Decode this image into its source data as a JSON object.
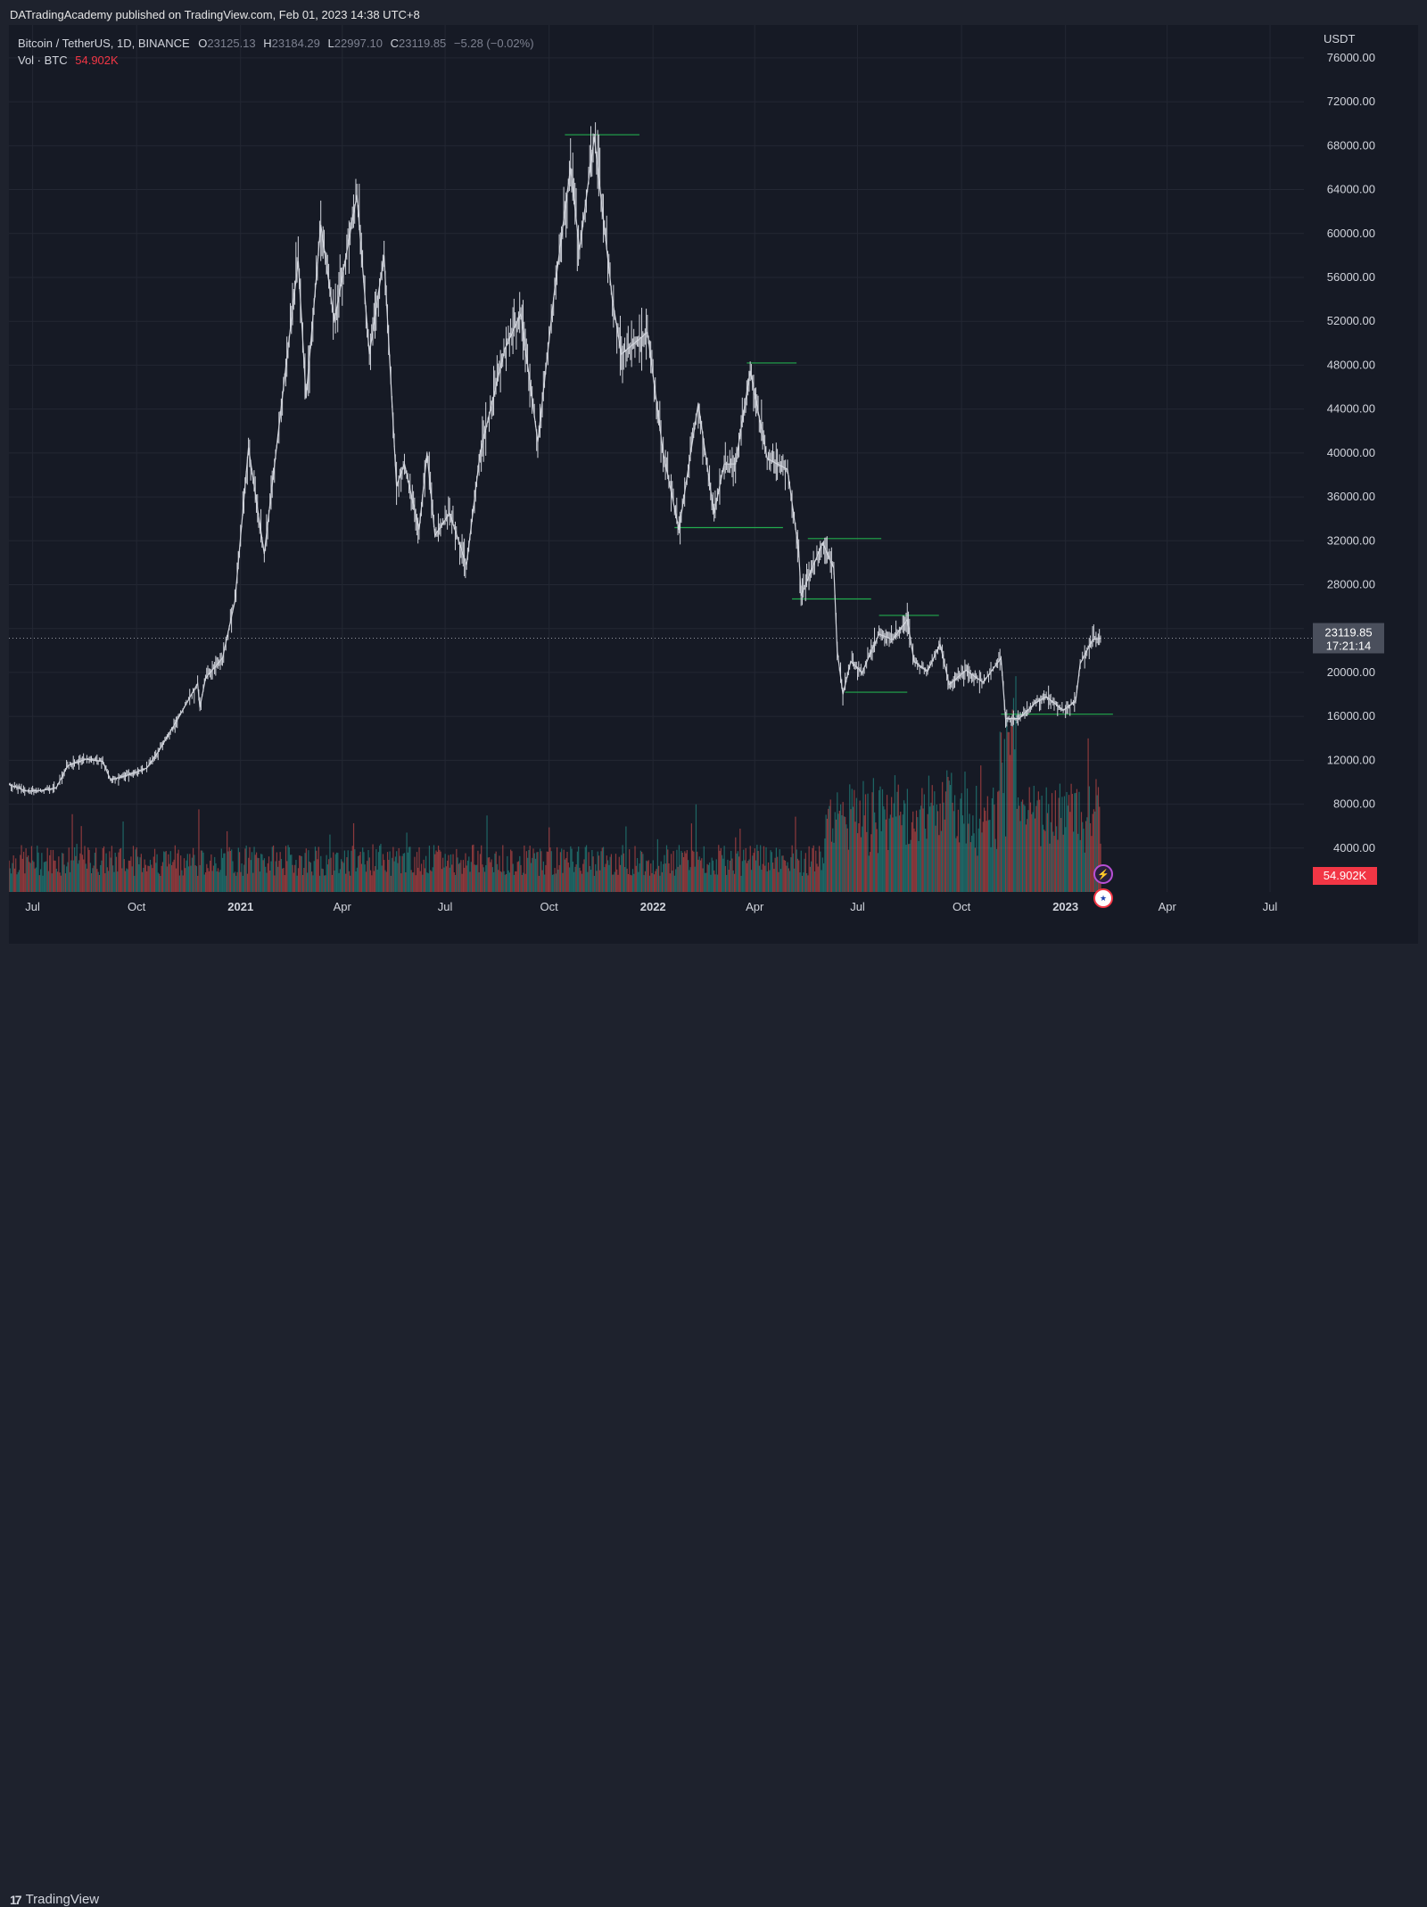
{
  "publisher": "DATradingAcademy published on TradingView.com, Feb 01, 2023 14:38 UTC+8",
  "legend": {
    "symbol": "Bitcoin / TetherUS, 1D, BINANCE",
    "open_label": "O",
    "open": "23125.13",
    "high_label": "H",
    "high": "23184.29",
    "low_label": "L",
    "low": "22997.10",
    "close_label": "C",
    "close": "23119.85",
    "change": "−5.28 (−0.02%)",
    "vol_label": "Vol · BTC",
    "vol_value": "54.902K"
  },
  "price_tag": {
    "price": "23119.85",
    "countdown": "17:21:14"
  },
  "volume_tag": "54.902K",
  "colors": {
    "bg": "#161a25",
    "price_line": "#d1d4dc",
    "level_line": "#22ab4d",
    "vol_up": "#26a69a",
    "vol_down": "#ef5350",
    "price_tag_bg": "#4a4f5c",
    "vol_tag_bg": "#f23645"
  },
  "icons": [
    "lightning-icon",
    "us-flag-icon"
  ],
  "brand": {
    "name": "TradingView",
    "logo": "tradingview-logo-icon"
  },
  "chart_data": {
    "type": "line",
    "currency": "USDT",
    "y_ticks": [
      "76000.00",
      "72000.00",
      "68000.00",
      "64000.00",
      "60000.00",
      "56000.00",
      "52000.00",
      "48000.00",
      "44000.00",
      "40000.00",
      "36000.00",
      "32000.00",
      "28000.00",
      "24000.00",
      "20000.00",
      "16000.00",
      "12000.00",
      "8000.00",
      "4000.00"
    ],
    "ylim": [
      0,
      79000
    ],
    "x_ticks": [
      {
        "label": "Jul",
        "date": "2020-07-01",
        "bold": false
      },
      {
        "label": "Oct",
        "date": "2020-10-01",
        "bold": false
      },
      {
        "label": "2021",
        "date": "2021-01-01",
        "bold": true
      },
      {
        "label": "Apr",
        "date": "2021-04-01",
        "bold": false
      },
      {
        "label": "Jul",
        "date": "2021-07-01",
        "bold": false
      },
      {
        "label": "Oct",
        "date": "2021-10-01",
        "bold": false
      },
      {
        "label": "2022",
        "date": "2022-01-01",
        "bold": true
      },
      {
        "label": "Apr",
        "date": "2022-04-01",
        "bold": false
      },
      {
        "label": "Jul",
        "date": "2022-07-01",
        "bold": false
      },
      {
        "label": "Oct",
        "date": "2022-10-01",
        "bold": false
      },
      {
        "label": "2023",
        "date": "2023-01-01",
        "bold": true
      },
      {
        "label": "Apr",
        "date": "2023-04-01",
        "bold": false
      },
      {
        "label": "Jul",
        "date": "2023-07-01",
        "bold": false
      }
    ],
    "xlim": [
      "2020-06-10",
      "2023-07-31"
    ],
    "last_price": 23119.85,
    "price_series": [
      [
        "2020-06-10",
        9800
      ],
      [
        "2020-06-25",
        9200
      ],
      [
        "2020-07-10",
        9250
      ],
      [
        "2020-07-22",
        9500
      ],
      [
        "2020-08-01",
        11500
      ],
      [
        "2020-08-17",
        12100
      ],
      [
        "2020-09-01",
        11900
      ],
      [
        "2020-09-08",
        10200
      ],
      [
        "2020-09-25",
        10700
      ],
      [
        "2020-10-10",
        11300
      ],
      [
        "2020-10-21",
        12900
      ],
      [
        "2020-11-05",
        15500
      ],
      [
        "2020-11-24",
        19000
      ],
      [
        "2020-11-26",
        16800
      ],
      [
        "2020-12-01",
        19500
      ],
      [
        "2020-12-16",
        21300
      ],
      [
        "2020-12-27",
        26500
      ],
      [
        "2021-01-08",
        40500
      ],
      [
        "2021-01-22",
        30800
      ],
      [
        "2021-02-08",
        46000
      ],
      [
        "2021-02-21",
        57500
      ],
      [
        "2021-02-28",
        45000
      ],
      [
        "2021-03-13",
        60800
      ],
      [
        "2021-03-25",
        52000
      ],
      [
        "2021-04-14",
        63500
      ],
      [
        "2021-04-25",
        49000
      ],
      [
        "2021-05-08",
        58000
      ],
      [
        "2021-05-19",
        37000
      ],
      [
        "2021-05-26",
        39000
      ],
      [
        "2021-06-08",
        33000
      ],
      [
        "2021-06-15",
        40000
      ],
      [
        "2021-06-22",
        32500
      ],
      [
        "2021-07-05",
        34500
      ],
      [
        "2021-07-20",
        29800
      ],
      [
        "2021-08-01",
        40000
      ],
      [
        "2021-08-23",
        49500
      ],
      [
        "2021-09-06",
        52700
      ],
      [
        "2021-09-21",
        41000
      ],
      [
        "2021-10-06",
        55000
      ],
      [
        "2021-10-20",
        66000
      ],
      [
        "2021-10-28",
        58500
      ],
      [
        "2021-11-10",
        68800
      ],
      [
        "2021-11-26",
        54000
      ],
      [
        "2021-12-04",
        49000
      ],
      [
        "2021-12-27",
        51000
      ],
      [
        "2022-01-10",
        40000
      ],
      [
        "2022-01-24",
        33000
      ],
      [
        "2022-02-10",
        44500
      ],
      [
        "2022-02-24",
        34500
      ],
      [
        "2022-03-05",
        39000
      ],
      [
        "2022-03-15",
        39000
      ],
      [
        "2022-03-28",
        47500
      ],
      [
        "2022-04-12",
        39500
      ],
      [
        "2022-04-30",
        38500
      ],
      [
        "2022-05-10",
        31000
      ],
      [
        "2022-05-12",
        27000
      ],
      [
        "2022-05-31",
        31800
      ],
      [
        "2022-06-10",
        29500
      ],
      [
        "2022-06-13",
        22000
      ],
      [
        "2022-06-18",
        18000
      ],
      [
        "2022-06-25",
        21000
      ],
      [
        "2022-07-05",
        20000
      ],
      [
        "2022-07-20",
        23500
      ],
      [
        "2022-08-01",
        23000
      ],
      [
        "2022-08-14",
        24800
      ],
      [
        "2022-08-20",
        21000
      ],
      [
        "2022-09-01",
        20100
      ],
      [
        "2022-09-12",
        22600
      ],
      [
        "2022-09-20",
        18900
      ],
      [
        "2022-10-05",
        20200
      ],
      [
        "2022-10-20",
        19100
      ],
      [
        "2022-11-05",
        21300
      ],
      [
        "2022-11-09",
        15800
      ],
      [
        "2022-11-21",
        15800
      ],
      [
        "2022-12-05",
        17200
      ],
      [
        "2022-12-15",
        17800
      ],
      [
        "2022-12-30",
        16550
      ],
      [
        "2023-01-10",
        17400
      ],
      [
        "2023-01-14",
        20800
      ],
      [
        "2023-01-25",
        23000
      ],
      [
        "2023-02-01",
        23119.85
      ]
    ],
    "levels": [
      {
        "price": 69000,
        "from": "2021-10-15",
        "to": "2021-12-20"
      },
      {
        "price": 48200,
        "from": "2022-03-25",
        "to": "2022-05-08"
      },
      {
        "price": 33200,
        "from": "2022-01-20",
        "to": "2022-04-26"
      },
      {
        "price": 32200,
        "from": "2022-05-18",
        "to": "2022-07-22"
      },
      {
        "price": 26700,
        "from": "2022-05-04",
        "to": "2022-07-13"
      },
      {
        "price": 25200,
        "from": "2022-07-20",
        "to": "2022-09-11"
      },
      {
        "price": 18200,
        "from": "2022-06-20",
        "to": "2022-08-14"
      },
      {
        "price": 16200,
        "from": "2022-11-05",
        "to": "2023-02-12"
      }
    ]
  }
}
